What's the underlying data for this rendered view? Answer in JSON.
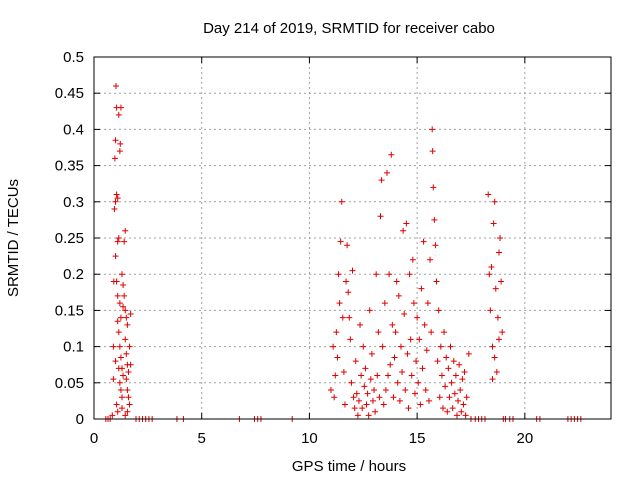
{
  "chart_data": {
    "type": "scatter",
    "title": "Day 214 of 2019, SRMTID for receiver cabo",
    "xlabel": "GPS time / hours",
    "ylabel": "SRMTID / TECUs",
    "xlim": [
      0,
      24
    ],
    "ylim": [
      0,
      0.5
    ],
    "x_ticks": [
      0,
      5,
      10,
      15,
      20
    ],
    "y_ticks": [
      0,
      0.05,
      0.1,
      0.15,
      0.2,
      0.25,
      0.3,
      0.35,
      0.4,
      0.45,
      0.5
    ],
    "x_tick_labels": [
      "0",
      "5",
      "10",
      "15",
      "20"
    ],
    "y_tick_labels": [
      "0",
      "0.05",
      "0.1",
      "0.15",
      "0.2",
      "0.25",
      "0.3",
      "0.35",
      "0.4",
      "0.45",
      "0.5"
    ],
    "grid": true,
    "marker": "+",
    "color": "#e00000",
    "series": [
      {
        "name": "SRMTID",
        "points": [
          [
            0.55,
            0
          ],
          [
            0.65,
            0
          ],
          [
            0.75,
            0
          ],
          [
            0.85,
            0.005
          ],
          [
            0.9,
            0.055
          ],
          [
            0.9,
            0.1
          ],
          [
            0.92,
            0.19
          ],
          [
            0.95,
            0.29
          ],
          [
            0.97,
            0.36
          ],
          [
            1.0,
            0.385
          ],
          [
            1.02,
            0.46
          ],
          [
            1.05,
            0.43
          ],
          [
            1.0,
            0.3
          ],
          [
            1.05,
            0.31
          ],
          [
            1.1,
            0.305
          ],
          [
            1.1,
            0.245
          ],
          [
            1.15,
            0.25
          ],
          [
            1.2,
            0.37
          ],
          [
            1.22,
            0.38
          ],
          [
            1.15,
            0.42
          ],
          [
            1.25,
            0.43
          ],
          [
            1.0,
            0.225
          ],
          [
            1.05,
            0.19
          ],
          [
            1.1,
            0.17
          ],
          [
            1.2,
            0.16
          ],
          [
            1.1,
            0.135
          ],
          [
            1.15,
            0.12
          ],
          [
            1.2,
            0.1
          ],
          [
            1.25,
            0.085
          ],
          [
            1.3,
            0.07
          ],
          [
            1.35,
            0.06
          ],
          [
            1.2,
            0.05
          ],
          [
            1.25,
            0.04
          ],
          [
            1.3,
            0.03
          ],
          [
            1.05,
            0.02
          ],
          [
            1.1,
            0.01
          ],
          [
            1.4,
            0.245
          ],
          [
            1.45,
            0.26
          ],
          [
            1.3,
            0.2
          ],
          [
            1.35,
            0.185
          ],
          [
            1.4,
            0.17
          ],
          [
            1.45,
            0.15
          ],
          [
            1.5,
            0.14
          ],
          [
            1.55,
            0.13
          ],
          [
            1.45,
            0.11
          ],
          [
            1.5,
            0.09
          ],
          [
            1.55,
            0.075
          ],
          [
            1.6,
            0.065
          ],
          [
            1.5,
            0.055
          ],
          [
            1.55,
            0.04
          ],
          [
            1.6,
            0.03
          ],
          [
            1.65,
            0.02
          ],
          [
            1.7,
            0.145
          ],
          [
            1.65,
            0.1
          ],
          [
            1.7,
            0.075
          ],
          [
            1.55,
            0.01
          ],
          [
            1.45,
            0.005
          ],
          [
            1.3,
            0.015
          ],
          [
            1.15,
            0.07
          ],
          [
            1.25,
            0.14
          ],
          [
            1.35,
            0.155
          ],
          [
            1.0,
            0.08
          ],
          [
            1.95,
            0
          ],
          [
            2.1,
            0
          ],
          [
            2.25,
            0
          ],
          [
            2.4,
            0
          ],
          [
            2.55,
            0
          ],
          [
            2.7,
            0
          ],
          [
            3.85,
            0
          ],
          [
            4.15,
            0
          ],
          [
            6.75,
            0
          ],
          [
            7.45,
            0
          ],
          [
            7.6,
            0
          ],
          [
            7.75,
            0
          ],
          [
            9.2,
            0
          ],
          [
            11.0,
            0.04
          ],
          [
            11.1,
            0.1
          ],
          [
            11.15,
            0.03
          ],
          [
            11.2,
            0.06
          ],
          [
            11.25,
            0.12
          ],
          [
            11.3,
            0.085
          ],
          [
            11.35,
            0.2
          ],
          [
            11.4,
            0.16
          ],
          [
            11.45,
            0.245
          ],
          [
            11.5,
            0.3
          ],
          [
            11.55,
            0.14
          ],
          [
            11.6,
            0.065
          ],
          [
            11.65,
            0.02
          ],
          [
            11.7,
            0.19
          ],
          [
            11.75,
            0.24
          ],
          [
            11.8,
            0.175
          ],
          [
            11.85,
            0.14
          ],
          [
            11.9,
            0.11
          ],
          [
            11.95,
            0.05
          ],
          [
            12.0,
            0.205
          ],
          [
            12.05,
            0.03
          ],
          [
            12.1,
            0.015
          ],
          [
            12.15,
            0.08
          ],
          [
            12.2,
            0.035
          ],
          [
            12.25,
            0.005
          ],
          [
            12.3,
            0.025
          ],
          [
            12.35,
            0.13
          ],
          [
            12.4,
            0.06
          ],
          [
            12.45,
            0.015
          ],
          [
            12.5,
            0.1
          ],
          [
            12.55,
            0.045
          ],
          [
            12.6,
            0.07
          ],
          [
            12.65,
            0.02
          ],
          [
            12.7,
            0.035
          ],
          [
            12.75,
            0.005
          ],
          [
            12.8,
            0.15
          ],
          [
            12.85,
            0.055
          ],
          [
            12.9,
            0.09
          ],
          [
            12.95,
            0.025
          ],
          [
            13.0,
            0.04
          ],
          [
            13.05,
            0.01
          ],
          [
            13.1,
            0.2
          ],
          [
            13.15,
            0.06
          ],
          [
            13.2,
            0.12
          ],
          [
            13.25,
            0.03
          ],
          [
            13.3,
            0.28
          ],
          [
            13.35,
            0.33
          ],
          [
            13.4,
            0.1
          ],
          [
            13.45,
            0.02
          ],
          [
            13.5,
            0.16
          ],
          [
            13.55,
            0.04
          ],
          [
            13.6,
            0.34
          ],
          [
            13.65,
            0.06
          ],
          [
            13.7,
            0.2
          ],
          [
            13.75,
            0.075
          ],
          [
            13.8,
            0.365
          ],
          [
            13.85,
            0.13
          ],
          [
            13.9,
            0.03
          ],
          [
            13.95,
            0.085
          ],
          [
            14.0,
            0.12
          ],
          [
            14.05,
            0.19
          ],
          [
            14.1,
            0.05
          ],
          [
            14.15,
            0.17
          ],
          [
            14.2,
            0.025
          ],
          [
            14.25,
            0.1
          ],
          [
            14.3,
            0.065
          ],
          [
            14.35,
            0.26
          ],
          [
            14.4,
            0.145
          ],
          [
            14.45,
            0.04
          ],
          [
            14.5,
            0.27
          ],
          [
            14.55,
            0.09
          ],
          [
            14.6,
            0.015
          ],
          [
            14.65,
            0.2
          ],
          [
            14.7,
            0.11
          ],
          [
            14.75,
            0.06
          ],
          [
            14.8,
            0.22
          ],
          [
            14.85,
            0.16
          ],
          [
            14.9,
            0.035
          ],
          [
            14.95,
            0.08
          ],
          [
            15.0,
            0.14
          ],
          [
            15.05,
            0.05
          ],
          [
            15.1,
            0.11
          ],
          [
            15.15,
            0.02
          ],
          [
            15.2,
            0.18
          ],
          [
            15.25,
            0.07
          ],
          [
            15.3,
            0.245
          ],
          [
            15.35,
            0.13
          ],
          [
            15.4,
            0.04
          ],
          [
            15.45,
            0.095
          ],
          [
            15.5,
            0.16
          ],
          [
            15.55,
            0.025
          ],
          [
            15.6,
            0.22
          ],
          [
            15.65,
            0.12
          ],
          [
            15.7,
            0.4
          ],
          [
            15.72,
            0.37
          ],
          [
            15.75,
            0.32
          ],
          [
            15.8,
            0.275
          ],
          [
            15.85,
            0.24
          ],
          [
            15.9,
            0.19
          ],
          [
            15.95,
            0.08
          ],
          [
            16.0,
            0.15
          ],
          [
            16.05,
            0.03
          ],
          [
            16.1,
            0.1
          ],
          [
            16.15,
            0.06
          ],
          [
            16.2,
            0.015
          ],
          [
            16.25,
            0.12
          ],
          [
            16.3,
            0.045
          ],
          [
            16.35,
            0.085
          ],
          [
            16.4,
            0.01
          ],
          [
            16.45,
            0.07
          ],
          [
            16.5,
            0.03
          ],
          [
            16.55,
            0.1
          ],
          [
            16.6,
            0.05
          ],
          [
            16.65,
            0.015
          ],
          [
            16.7,
            0.08
          ],
          [
            16.75,
            0.035
          ],
          [
            16.8,
            0.06
          ],
          [
            16.85,
            0.005
          ],
          [
            16.9,
            0.025
          ],
          [
            16.95,
            0.075
          ],
          [
            17.0,
            0.04
          ],
          [
            17.05,
            0.01
          ],
          [
            17.1,
            0.055
          ],
          [
            17.15,
            0.02
          ],
          [
            17.2,
            0.065
          ],
          [
            17.25,
            0.005
          ],
          [
            17.3,
            0.03
          ],
          [
            17.4,
            0.09
          ],
          [
            17.5,
            0
          ],
          [
            17.7,
            0
          ],
          [
            17.85,
            0
          ],
          [
            18.0,
            0
          ],
          [
            18.15,
            0
          ],
          [
            18.3,
            0.31
          ],
          [
            18.35,
            0.2
          ],
          [
            18.4,
            0.15
          ],
          [
            18.45,
            0.21
          ],
          [
            18.5,
            0.1
          ],
          [
            18.55,
            0.27
          ],
          [
            18.6,
            0.3
          ],
          [
            18.65,
            0.18
          ],
          [
            18.7,
            0.065
          ],
          [
            18.75,
            0.14
          ],
          [
            18.8,
            0.23
          ],
          [
            18.85,
            0.25
          ],
          [
            18.9,
            0.19
          ],
          [
            18.95,
            0.12
          ],
          [
            18.5,
            0.055
          ],
          [
            18.6,
            0.085
          ],
          [
            18.8,
            0.11
          ],
          [
            19.0,
            0
          ],
          [
            19.1,
            0
          ],
          [
            19.3,
            0
          ],
          [
            19.45,
            0
          ],
          [
            20.55,
            0
          ],
          [
            20.7,
            0
          ],
          [
            22.0,
            0
          ],
          [
            22.15,
            0
          ],
          [
            22.3,
            0
          ],
          [
            22.45,
            0
          ],
          [
            22.6,
            0
          ]
        ]
      }
    ]
  }
}
